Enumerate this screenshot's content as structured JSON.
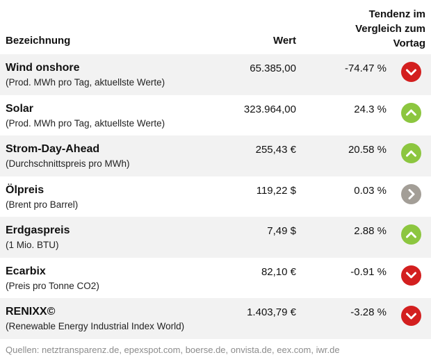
{
  "header": {
    "name_label": "Bezeichnung",
    "value_label": "Wert",
    "trend_line1": "Tendenz im",
    "trend_line2": "Vergleich zum",
    "trend_line3": "Vortag"
  },
  "colors": {
    "down": "#d31f1f",
    "up": "#8cc63f",
    "neutral": "#a39e97",
    "row_alt": "#f2f2f2"
  },
  "rows": [
    {
      "name": "Wind onshore",
      "sub": "(Prod. MWh pro Tag, aktuellste Werte)",
      "value": "65.385,00",
      "pct": "-74.47 %",
      "trend": "down",
      "icon": "chevron-down-icon"
    },
    {
      "name": "Solar",
      "sub": "(Prod. MWh pro Tag, aktuellste Werte)",
      "value": "323.964,00",
      "pct": "24.3 %",
      "trend": "up",
      "icon": "chevron-up-icon"
    },
    {
      "name": "Strom-Day-Ahead",
      "sub": "(Durchschnittspreis pro MWh)",
      "value": "255,43 €",
      "pct": "20.58 %",
      "trend": "up",
      "icon": "chevron-up-icon"
    },
    {
      "name": "Ölpreis",
      "sub": "(Brent pro Barrel)",
      "value": "119,22 $",
      "pct": "0.03 %",
      "trend": "right",
      "icon": "chevron-right-icon"
    },
    {
      "name": "Erdgaspreis",
      "sub": "(1 Mio. BTU)",
      "value": "7,49 $",
      "pct": "2.88 %",
      "trend": "up",
      "icon": "chevron-up-icon"
    },
    {
      "name": "Ecarbix",
      "sub": "(Preis pro Tonne CO2)",
      "value": "82,10 €",
      "pct": "-0.91 %",
      "trend": "down",
      "icon": "chevron-down-icon"
    },
    {
      "name": "RENIXX©",
      "sub": "(Renewable Energy Industrial Index World)",
      "value": "1.403,79 €",
      "pct": "-3.28 %",
      "trend": "down",
      "icon": "chevron-down-icon"
    }
  ],
  "footer": {
    "sources": "Quellen: netztransparenz.de, epexspot.com, boerse.de, onvista.de, eex.com, iwr.de"
  }
}
